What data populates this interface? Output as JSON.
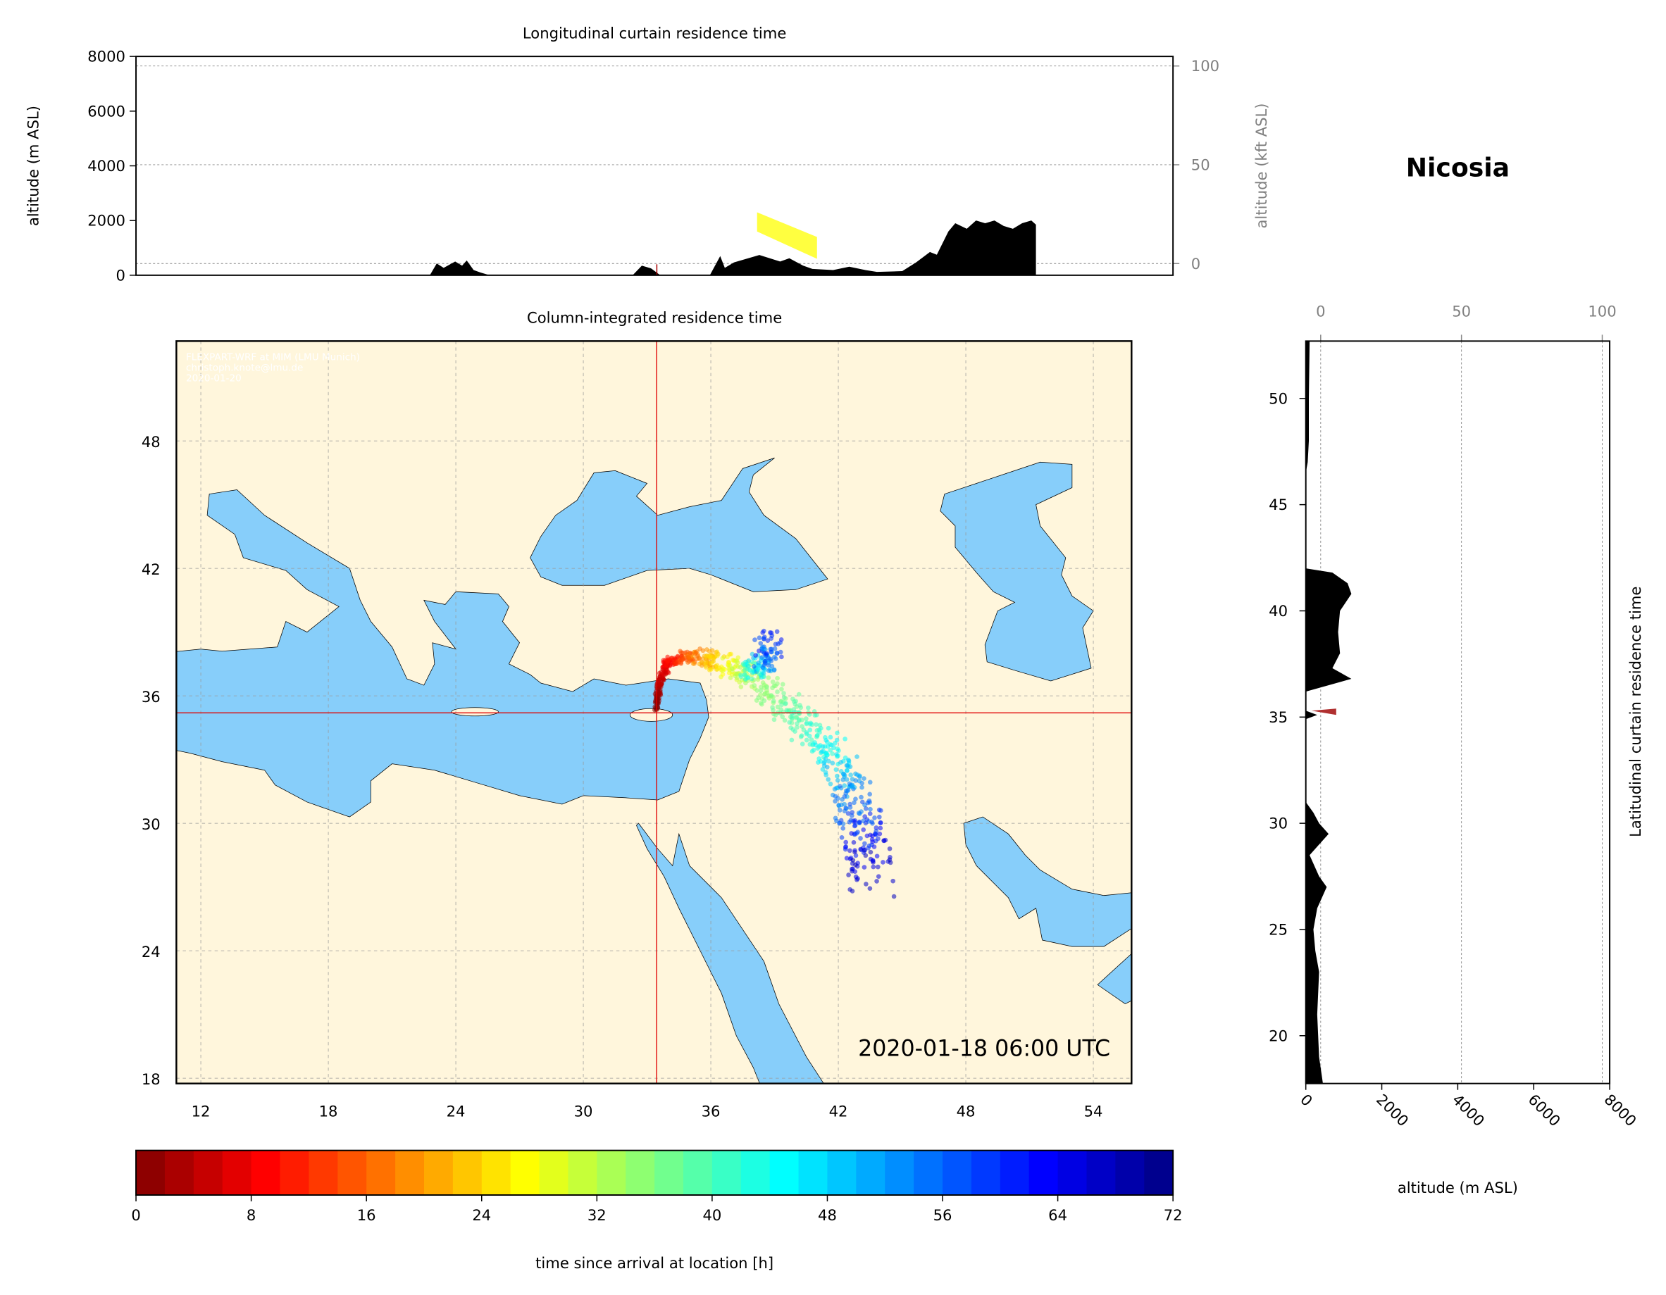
{
  "station_title": "Nicosia",
  "colors": {
    "land": "#fff6dc",
    "sea": "#87cefa",
    "crosshair": "#e00000",
    "terrain": "#000000",
    "grid": "#999999"
  },
  "chart_data": [
    {
      "type": "area",
      "title": "Longitudinal curtain residence time",
      "ylabel": "altitude (m ASL)",
      "ylabel_right": "altitude (kft ASL)",
      "ylim": [
        0,
        8000
      ],
      "yticks": [
        0,
        2000,
        4000,
        6000,
        8000
      ],
      "yticks_right": [
        0,
        50,
        100
      ],
      "grid": true,
      "terrain": {
        "lon": [
          23.6,
          23.9,
          24.2,
          24.7,
          25.0,
          25.2,
          25.5,
          25.8,
          26.2,
          32.4,
          32.8,
          33.2,
          33.6,
          35.75,
          36.2,
          36.4,
          36.8,
          37.9,
          38.8,
          39.2,
          39.8,
          40.2,
          41.1,
          41.8,
          42.5,
          43.0,
          44.1,
          44.7,
          45.3,
          45.6,
          46.1,
          46.4,
          46.9,
          47.3,
          47.7,
          48.1,
          48.5,
          48.9,
          49.3,
          49.7,
          49.9
        ],
        "altitude": [
          0,
          430,
          270,
          500,
          350,
          540,
          190,
          100,
          0,
          0,
          350,
          250,
          0,
          0,
          700,
          270,
          470,
          740,
          500,
          620,
          350,
          230,
          190,
          310,
          190,
          120,
          150,
          470,
          850,
          750,
          1600,
          1900,
          1700,
          2000,
          1900,
          2000,
          1800,
          1700,
          1900,
          2000,
          1850
        ]
      },
      "plume": {
        "lon_range": [
          37.8,
          40.4
        ],
        "altitude_top": [
          2300,
          1400
        ],
        "altitude_bottom": [
          1600,
          600
        ],
        "hours": 27
      }
    },
    {
      "type": "heatmap",
      "title": "Column-integrated residence time",
      "xticks": [
        12,
        18,
        24,
        30,
        36,
        42,
        48,
        54
      ],
      "yticks": [
        18,
        24,
        30,
        36,
        42,
        48
      ],
      "xlim": [
        10.85,
        55.8
      ],
      "ylim": [
        17.75,
        52.7
      ],
      "grid": true,
      "station": {
        "name": "Nicosia",
        "lon": 33.45,
        "lat": 35.2
      },
      "timestamp": "2020-01-18 06:00 UTC",
      "credits": [
        "FLEXPART-WRF at MIM (LMU Munich)",
        "christoph.knote@lmu.de",
        "2020-01-20"
      ],
      "trajectory": [
        {
          "lon": 33.4,
          "lat": 35.4,
          "hours": 0
        },
        {
          "lon": 33.6,
          "lat": 36.6,
          "hours": 4
        },
        {
          "lon": 34.0,
          "lat": 37.6,
          "hours": 9
        },
        {
          "lon": 35.0,
          "lat": 37.9,
          "hours": 16
        },
        {
          "lon": 36.2,
          "lat": 37.7,
          "hours": 24
        },
        {
          "lon": 37.5,
          "lat": 37.1,
          "hours": 32
        },
        {
          "lon": 38.8,
          "lat": 36.2,
          "hours": 36
        },
        {
          "lon": 40.2,
          "lat": 34.8,
          "hours": 40
        },
        {
          "lon": 41.5,
          "lat": 33.6,
          "hours": 44
        },
        {
          "lon": 42.2,
          "lat": 32.2,
          "hours": 50
        },
        {
          "lon": 42.8,
          "lat": 30.6,
          "hours": 56
        },
        {
          "lon": 43.3,
          "lat": 29.2,
          "hours": 62
        },
        {
          "lon": 43.6,
          "lat": 27.5,
          "hours": 68
        }
      ],
      "branch": [
        {
          "lon": 37.8,
          "lat": 37.0,
          "hours": 40
        },
        {
          "lon": 38.5,
          "lat": 37.6,
          "hours": 52
        },
        {
          "lon": 38.8,
          "lat": 38.6,
          "hours": 62
        }
      ]
    },
    {
      "type": "area",
      "title": "Latitudinal curtain residence time",
      "xlabel": "altitude (m ASL)",
      "xlim": [
        0,
        8000
      ],
      "xticks": [
        0,
        2000,
        4000,
        6000,
        8000
      ],
      "xticks_top": [
        0,
        50,
        100
      ],
      "yticks": [
        20,
        25,
        30,
        35,
        40,
        45,
        50
      ],
      "ylim": [
        17.75,
        52.7
      ],
      "grid": true,
      "terrain": {
        "lat": [
          17.75,
          19,
          21,
          23,
          24,
          25,
          26,
          27,
          27.5,
          28.5,
          29,
          29.5,
          30,
          30.5,
          31,
          34.9,
          35.1,
          35.3,
          36.2,
          36.8,
          37.3,
          38,
          39,
          40,
          40.8,
          41.3,
          41.8,
          42,
          46.5,
          47,
          48,
          50,
          52.7
        ],
        "altitude": [
          450,
          350,
          300,
          350,
          250,
          200,
          300,
          550,
          350,
          100,
          350,
          600,
          350,
          200,
          0,
          0,
          300,
          0,
          0,
          1200,
          700,
          900,
          850,
          900,
          1200,
          1100,
          700,
          0,
          0,
          50,
          80,
          80,
          100
        ]
      },
      "plume": {
        "lat": 35.3,
        "altitude_range": [
          150,
          800
        ],
        "hours": 0
      }
    },
    {
      "type": "bar",
      "title": "",
      "xlabel": "time since arrival at location [h]",
      "xlim": [
        0,
        72
      ],
      "xticks": [
        0,
        8,
        16,
        24,
        32,
        40,
        48,
        56,
        64,
        72
      ],
      "colormap": "jet_r"
    }
  ]
}
